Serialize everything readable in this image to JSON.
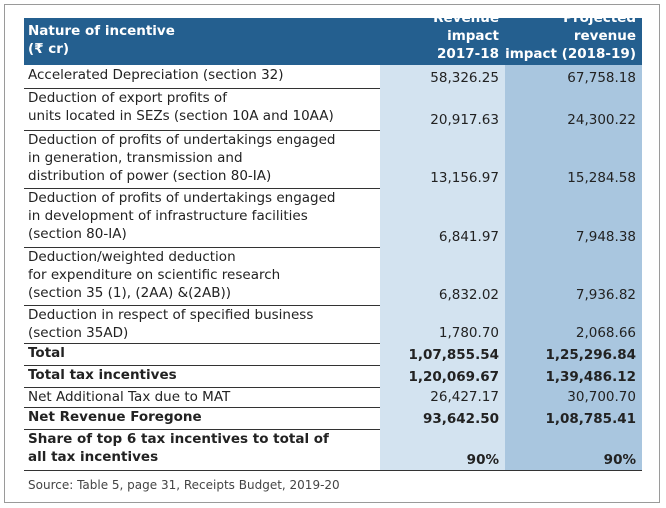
{
  "table": {
    "header": {
      "label": [
        "Nature of incentive",
        "(₹ cr)"
      ],
      "columns": [
        [
          "Revenue impact",
          "2017-18"
        ],
        [
          "Projected revenue",
          "impact (2018-19)"
        ]
      ]
    },
    "rows": [
      {
        "label": [
          "Accelerated Depreciation (section 32)"
        ],
        "values": [
          "58,326.25",
          "67,758.18"
        ],
        "bold": false
      },
      {
        "label": [
          "Deduction of export profits of",
          "units located in SEZs (section 10A and 10AA)"
        ],
        "values": [
          "20,917.63",
          "24,300.22"
        ],
        "bold": false
      },
      {
        "label": [
          "Deduction of profits of undertakings engaged",
          "in generation, transmission and",
          "distribution of power (section 80-IA)"
        ],
        "values": [
          "13,156.97",
          "15,284.58"
        ],
        "bold": false
      },
      {
        "label": [
          "Deduction of profits of undertakings engaged",
          "in development of infrastructure facilities",
          "(section 80-IA)"
        ],
        "values": [
          "6,841.97",
          "7,948.38"
        ],
        "bold": false
      },
      {
        "label": [
          "Deduction/weighted deduction",
          "for expenditure on scientific research",
          "(section 35 (1), (2AA) &(2AB))"
        ],
        "values": [
          "6,832.02",
          "7,936.82"
        ],
        "bold": false
      },
      {
        "label": [
          "Deduction in respect of specified business",
          "(section 35AD)"
        ],
        "values": [
          "1,780.70",
          "2,068.66"
        ],
        "bold": false
      },
      {
        "label": [
          "Total"
        ],
        "values": [
          "1,07,855.54",
          "1,25,296.84"
        ],
        "bold": true
      },
      {
        "label": [
          "Total tax incentives"
        ],
        "values": [
          "1,20,069.67",
          "1,39,486.12"
        ],
        "bold": true
      },
      {
        "label": [
          "Net Additional Tax due to MAT"
        ],
        "values": [
          "26,427.17",
          "30,700.70"
        ],
        "bold": false
      },
      {
        "label": [
          "Net Revenue Foregone"
        ],
        "values": [
          "93,642.50",
          "1,08,785.41"
        ],
        "bold": true
      },
      {
        "label": [
          "Share of top 6 tax incentives to total of",
          "all tax incentives"
        ],
        "values": [
          "90%",
          "90%"
        ],
        "bold": true
      }
    ],
    "source": "Source: Table 5, page 31, Receipts Budget, 2019-20"
  }
}
